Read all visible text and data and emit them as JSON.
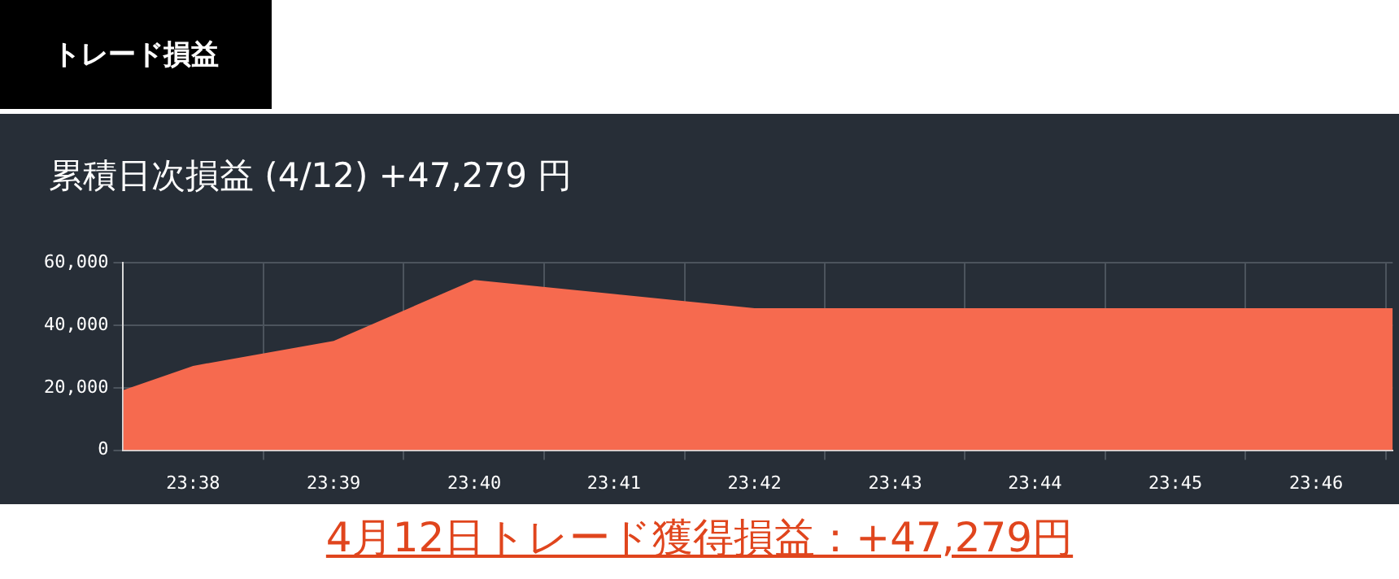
{
  "chart_data": {
    "type": "area",
    "title": "トレード損益",
    "subtitle": "累積日次損益 (4/12) +47,279 円",
    "annotations": [
      "4月12日トレード獲得損益：+47,279円"
    ],
    "x": [
      23.625,
      23.6333,
      23.65,
      23.6667,
      23.6833,
      23.7,
      23.7167,
      23.7333,
      23.75,
      23.7667,
      23.7758
    ],
    "series": [
      {
        "color": "#f66a4f",
        "values": [
          19200,
          27000,
          35000,
          54500,
          50000,
          45500,
          45500,
          45500,
          45500,
          45500,
          45500
        ]
      }
    ],
    "xlim": [
      23.625,
      23.7758
    ],
    "xticks": [
      {
        "value": 23.6333,
        "label": "23:38"
      },
      {
        "value": 23.6417,
        "label": null
      },
      {
        "value": 23.65,
        "label": "23:39"
      },
      {
        "value": 23.6583,
        "label": null
      },
      {
        "value": 23.6667,
        "label": "23:40"
      },
      {
        "value": 23.675,
        "label": null
      },
      {
        "value": 23.6833,
        "label": "23:41"
      },
      {
        "value": 23.6917,
        "label": null
      },
      {
        "value": 23.7,
        "label": "23:42"
      },
      {
        "value": 23.7083,
        "label": null
      },
      {
        "value": 23.7167,
        "label": "23:43"
      },
      {
        "value": 23.725,
        "label": null
      },
      {
        "value": 23.7333,
        "label": "23:44"
      },
      {
        "value": 23.7417,
        "label": null
      },
      {
        "value": 23.75,
        "label": "23:45"
      },
      {
        "value": 23.7583,
        "label": null
      },
      {
        "value": 23.7667,
        "label": "23:46"
      },
      {
        "value": 23.775,
        "label": null
      }
    ],
    "ylim": [
      0,
      60000
    ],
    "yticks": [
      0,
      {
        "value": 20000,
        "label": "20,000"
      },
      {
        "value": 40000,
        "label": "40,000"
      },
      {
        "value": 60000,
        "label": "60,000"
      }
    ],
    "grid": true,
    "legend": false
  }
}
